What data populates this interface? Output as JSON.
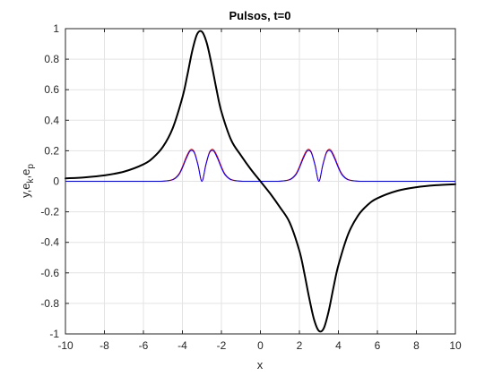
{
  "chart_data": {
    "type": "line",
    "title": "Pulsos, t=0",
    "xlabel": "x",
    "ylabel_parts": {
      "base": "y,e",
      "sub1": "k",
      "mid": ",e",
      "sub2": "p"
    },
    "xlim": [
      -10,
      10
    ],
    "ylim": [
      -1,
      1
    ],
    "grid": true,
    "legend": "none",
    "x_ticks": [
      -10,
      -8,
      -6,
      -4,
      -2,
      0,
      2,
      4,
      6,
      8,
      10
    ],
    "x_tick_labels": [
      "-10",
      "-8",
      "-6",
      "-4",
      "-2",
      "0",
      "2",
      "4",
      "6",
      "8",
      "10"
    ],
    "y_ticks": [
      -1,
      -0.8,
      -0.6,
      -0.4,
      -0.2,
      0,
      0.2,
      0.4,
      0.6,
      0.8,
      1
    ],
    "y_tick_labels": [
      "-1",
      "-0.8",
      "-0.6",
      "-0.4",
      "-0.2",
      "0",
      "0.2",
      "0.4",
      "0.6",
      "0.8",
      "1"
    ],
    "series": [
      {
        "color": "#000000",
        "x": [
          -10,
          -9,
          -8,
          -7,
          -6,
          -5.5,
          -5,
          -4.5,
          -4,
          -3.75,
          -3.5,
          -3.25,
          -3,
          -2.75,
          -2.5,
          -2.25,
          -2,
          -1.5,
          -1,
          -0.5,
          0,
          0.5,
          1,
          1.5,
          2,
          2.25,
          2.5,
          2.75,
          3,
          3.25,
          3.5,
          3.75,
          4,
          4.5,
          5,
          5.5,
          6,
          7,
          8,
          9,
          10
        ],
        "y": [
          0.019,
          0.026,
          0.039,
          0.063,
          0.111,
          0.155,
          0.226,
          0.347,
          0.55,
          0.694,
          0.852,
          0.963,
          0.98,
          0.905,
          0.763,
          0.6,
          0.456,
          0.27,
          0.17,
          0.08,
          0,
          -0.08,
          -0.17,
          -0.27,
          -0.456,
          -0.6,
          -0.763,
          -0.905,
          -0.98,
          -0.963,
          -0.852,
          -0.694,
          -0.55,
          -0.347,
          -0.226,
          -0.155,
          -0.111,
          -0.063,
          -0.039,
          -0.026,
          -0.019
        ]
      },
      {
        "color": "#ff0000",
        "x": [
          -10,
          -6,
          -5,
          -4.5,
          -4.2,
          -4,
          -3.8,
          -3.6,
          -3.4,
          -3.2,
          -3,
          -2.8,
          -2.6,
          -2.4,
          -2.2,
          -2,
          -1.8,
          -1.5,
          -1,
          0,
          1,
          1.5,
          1.8,
          2,
          2.2,
          2.4,
          2.6,
          2.8,
          3,
          3.2,
          3.4,
          3.6,
          3.8,
          4,
          4.2,
          4.5,
          5,
          6,
          10
        ],
        "y": [
          0,
          0,
          0.001,
          0.012,
          0.045,
          0.096,
          0.16,
          0.206,
          0.195,
          0.11,
          0,
          0.11,
          0.195,
          0.206,
          0.16,
          0.096,
          0.045,
          0.012,
          0.001,
          0,
          0.001,
          0.012,
          0.045,
          0.096,
          0.16,
          0.206,
          0.195,
          0.11,
          0,
          0.11,
          0.195,
          0.206,
          0.16,
          0.096,
          0.045,
          0.012,
          0.001,
          0,
          0
        ]
      },
      {
        "color": "#0000ff",
        "x": [
          -10,
          -6,
          -5,
          -4.5,
          -4.2,
          -4,
          -3.8,
          -3.6,
          -3.4,
          -3.2,
          -3,
          -2.8,
          -2.6,
          -2.4,
          -2.2,
          -2,
          -1.8,
          -1.5,
          -1,
          0,
          1,
          1.5,
          1.8,
          2,
          2.2,
          2.4,
          2.6,
          2.8,
          3,
          3.2,
          3.4,
          3.6,
          3.8,
          4,
          4.2,
          4.5,
          5,
          6,
          10
        ],
        "y": [
          0,
          0,
          0.001,
          0.01,
          0.04,
          0.088,
          0.15,
          0.198,
          0.19,
          0.105,
          0,
          0.105,
          0.19,
          0.198,
          0.15,
          0.088,
          0.04,
          0.01,
          0.001,
          0,
          0.001,
          0.01,
          0.04,
          0.088,
          0.15,
          0.198,
          0.19,
          0.105,
          0,
          0.105,
          0.19,
          0.198,
          0.15,
          0.088,
          0.04,
          0.01,
          0.001,
          0,
          0
        ]
      }
    ]
  }
}
